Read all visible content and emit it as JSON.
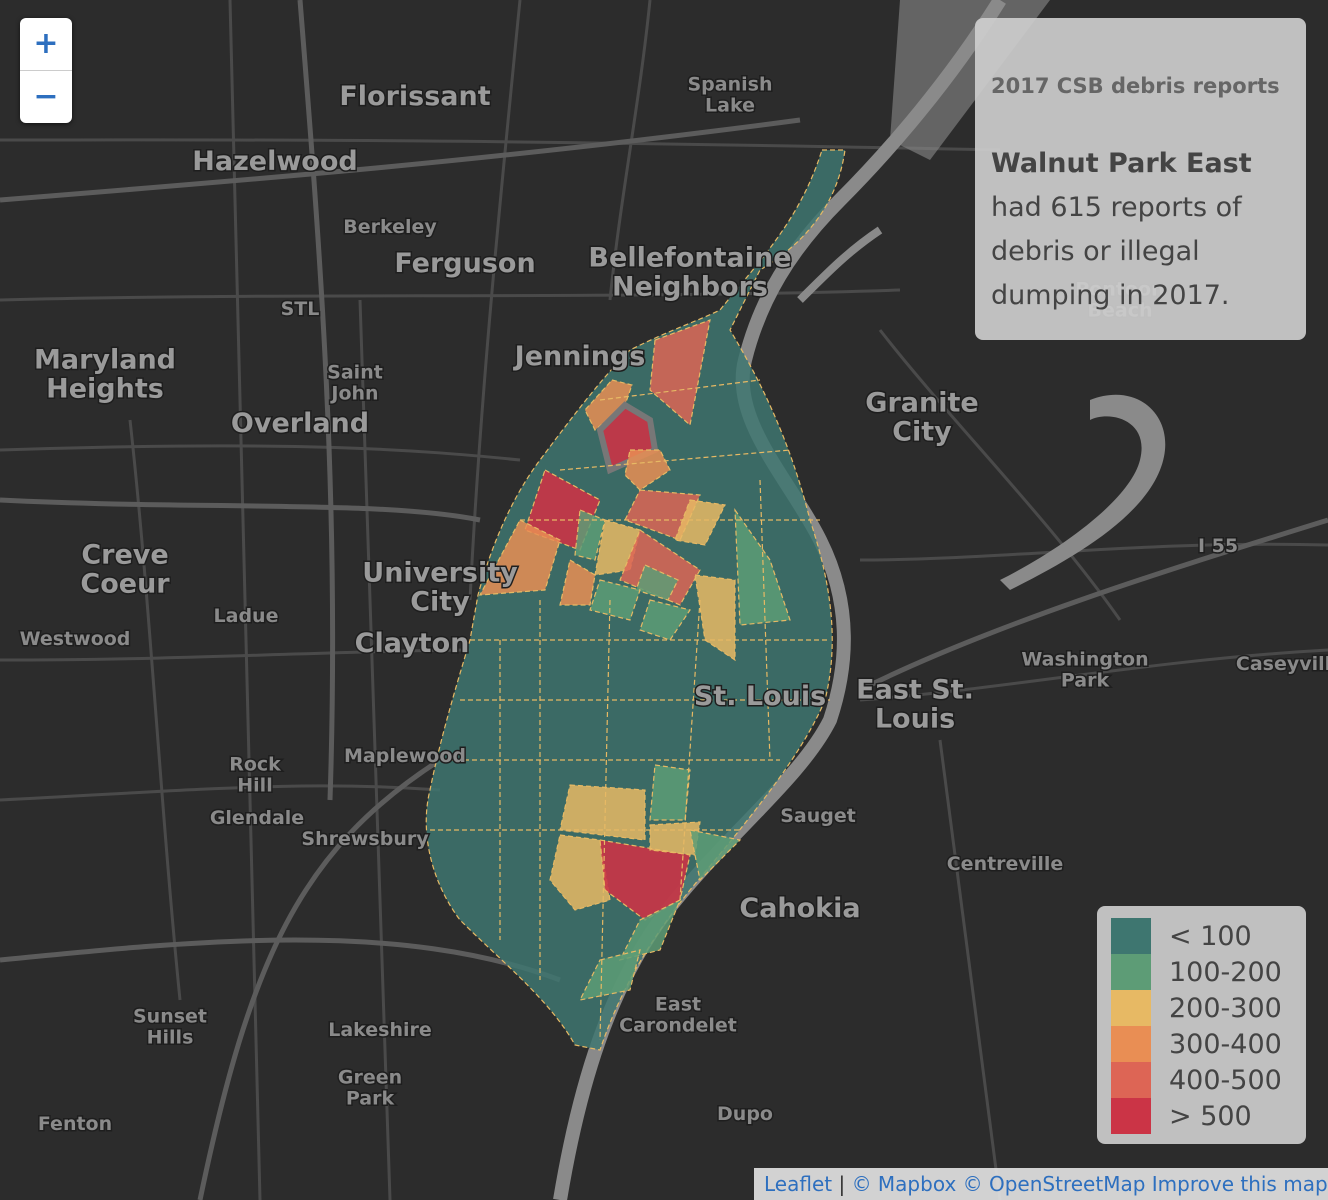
{
  "map": {
    "places": [
      {
        "name": "Florissant",
        "size": "big"
      },
      {
        "name": "Spanish Lake",
        "size": "small"
      },
      {
        "name": "Hazelwood",
        "size": "big"
      },
      {
        "name": "Berkeley",
        "size": "small"
      },
      {
        "name": "Ferguson",
        "size": "big"
      },
      {
        "name": "Bellefontaine Neighbors",
        "size": "big"
      },
      {
        "name": "STL",
        "size": "small"
      },
      {
        "name": "Maryland Heights",
        "size": "big"
      },
      {
        "name": "Saint John",
        "size": "small"
      },
      {
        "name": "Jennings",
        "size": "big"
      },
      {
        "name": "Overland",
        "size": "big"
      },
      {
        "name": "Granite City",
        "size": "big"
      },
      {
        "name": "Creve Coeur",
        "size": "big"
      },
      {
        "name": "Ladue",
        "size": "small"
      },
      {
        "name": "University City",
        "size": "big"
      },
      {
        "name": "Westwood",
        "size": "small"
      },
      {
        "name": "Clayton",
        "size": "big"
      },
      {
        "name": "St. Louis",
        "size": "big"
      },
      {
        "name": "East St. Louis",
        "size": "big"
      },
      {
        "name": "Washington Park",
        "size": "small"
      },
      {
        "name": "Caseyville",
        "size": "small"
      },
      {
        "name": "Maplewood",
        "size": "small"
      },
      {
        "name": "Rock Hill",
        "size": "small"
      },
      {
        "name": "Glendale",
        "size": "small"
      },
      {
        "name": "Shrewsbury",
        "size": "small"
      },
      {
        "name": "Sauget",
        "size": "small"
      },
      {
        "name": "Centreville",
        "size": "small"
      },
      {
        "name": "Cahokia",
        "size": "big"
      },
      {
        "name": "Sunset Hills",
        "size": "small"
      },
      {
        "name": "Lakeshire",
        "size": "small"
      },
      {
        "name": "East Carondelet",
        "size": "small"
      },
      {
        "name": "Green Park",
        "size": "small"
      },
      {
        "name": "Fenton",
        "size": "small"
      },
      {
        "name": "Dupo",
        "size": "small"
      },
      {
        "name": "Pontoon Beach",
        "size": "small"
      },
      {
        "name": "I 55",
        "size": "small"
      }
    ]
  },
  "zoom": {
    "in_label": "+",
    "out_label": "−"
  },
  "info": {
    "title": "2017 CSB debris reports",
    "neighborhood": "Walnut Park East",
    "text_1": " had ",
    "count": "615",
    "text_2": " reports of debris or illegal dumping in 2017."
  },
  "legend": {
    "items": [
      {
        "label": "< 100",
        "color": "#3e7670"
      },
      {
        "label": "100-200",
        "color": "#5d9c76"
      },
      {
        "label": "200-300",
        "color": "#e7b964"
      },
      {
        "label": "300-400",
        "color": "#e98e54"
      },
      {
        "label": "400-500",
        "color": "#dd6555"
      },
      {
        "label": "> 500",
        "color": "#cb3446"
      }
    ]
  },
  "attribution": {
    "leaflet": "Leaflet",
    "sep": " | ",
    "mapbox": "© Mapbox",
    "osm": "© OpenStreetMap",
    "improve": "Improve this map"
  }
}
